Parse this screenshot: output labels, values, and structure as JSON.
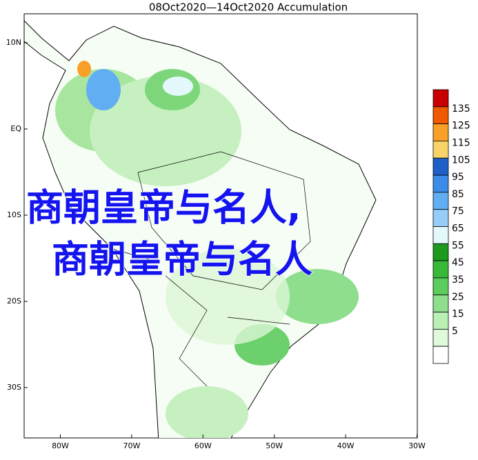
{
  "title": "08Oct2020—14Oct2020 Accumulation",
  "lat_labels": [
    "10N",
    "EQ",
    "10S",
    "20S",
    "30S"
  ],
  "lon_labels": [
    "80W",
    "70W",
    "60W",
    "50W",
    "40W",
    "30W"
  ],
  "legend": {
    "colors": [
      "#c80000",
      "#f05a00",
      "#f8a028",
      "#f8d468",
      "#1f5fc8",
      "#3a8ce6",
      "#62aef2",
      "#96ccf8",
      "#e2f8fa",
      "#1e9a1e",
      "#38b838",
      "#5ccc5c",
      "#8ede8e",
      "#baf0b4",
      "#e0f8dc",
      "#ffffff"
    ],
    "labels": [
      "135",
      "125",
      "115",
      "105",
      "95",
      "85",
      "75",
      "65",
      "55",
      "45",
      "35",
      "25",
      "15",
      "5"
    ]
  },
  "overlay": [
    "商朝皇帝与名人,",
    "商朝皇帝与名人"
  ]
}
